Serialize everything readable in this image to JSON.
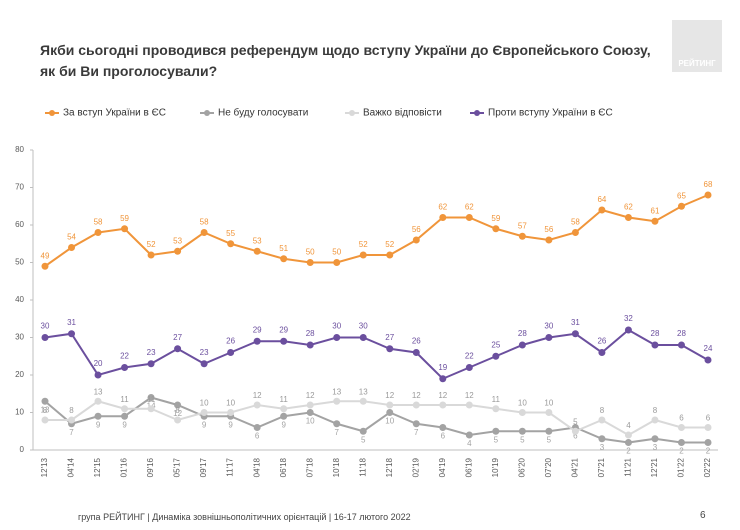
{
  "chart_data": {
    "type": "line",
    "title": "Якби сьогодні проводився референдум щодо вступу України до Європейського Союзу, як би Ви проголосували?",
    "categories": [
      "12'13",
      "04'14",
      "12'15",
      "01'16",
      "09'16",
      "05'17",
      "09'17",
      "11'17",
      "04'18",
      "06'18",
      "07'18",
      "10'18",
      "11'18",
      "12'18",
      "02'19",
      "04'19",
      "06'19",
      "10'19",
      "06'20",
      "07'20",
      "04'21",
      "07'21",
      "11'21",
      "12'21",
      "01'22",
      "02'22"
    ],
    "series": [
      {
        "name": "За вступ України в ЄС",
        "color": "#f0953a",
        "values": [
          49,
          54,
          58,
          59,
          52,
          53,
          58,
          55,
          53,
          51,
          50,
          50,
          52,
          52,
          56,
          62,
          62,
          59,
          57,
          56,
          58,
          64,
          62,
          61,
          65,
          68
        ]
      },
      {
        "name": "Не буду голосувати",
        "color": "#a3a3a3",
        "values": [
          13,
          7,
          9,
          9,
          14,
          12,
          9,
          9,
          6,
          9,
          10,
          7,
          5,
          10,
          7,
          6,
          4,
          5,
          5,
          5,
          6,
          3,
          2,
          3,
          2,
          2
        ]
      },
      {
        "name": "Важко відповісти",
        "color": "#d9d9d9",
        "values": [
          8,
          8,
          13,
          11,
          11,
          8,
          10,
          10,
          12,
          11,
          12,
          13,
          13,
          12,
          12,
          12,
          12,
          11,
          10,
          10,
          5,
          8,
          4,
          8,
          6,
          6
        ]
      },
      {
        "name": "Проти вступу України в ЄС",
        "color": "#6b4f9e",
        "values": [
          30,
          31,
          20,
          22,
          23,
          27,
          23,
          26,
          29,
          29,
          28,
          30,
          30,
          27,
          26,
          19,
          22,
          25,
          28,
          30,
          31,
          26,
          32,
          28,
          28,
          24
        ]
      }
    ],
    "ylim": [
      0,
      80
    ],
    "yticks": [
      0,
      10,
      20,
      30,
      40,
      50,
      60,
      70,
      80
    ],
    "legend": "top"
  },
  "logo": "РЕЙТИНГ",
  "footer": {
    "text": "група РЕЙТИНГ |  Динаміка зовнішньополітичних орієнтацій | 16-17 лютого 2022",
    "page": "6"
  }
}
